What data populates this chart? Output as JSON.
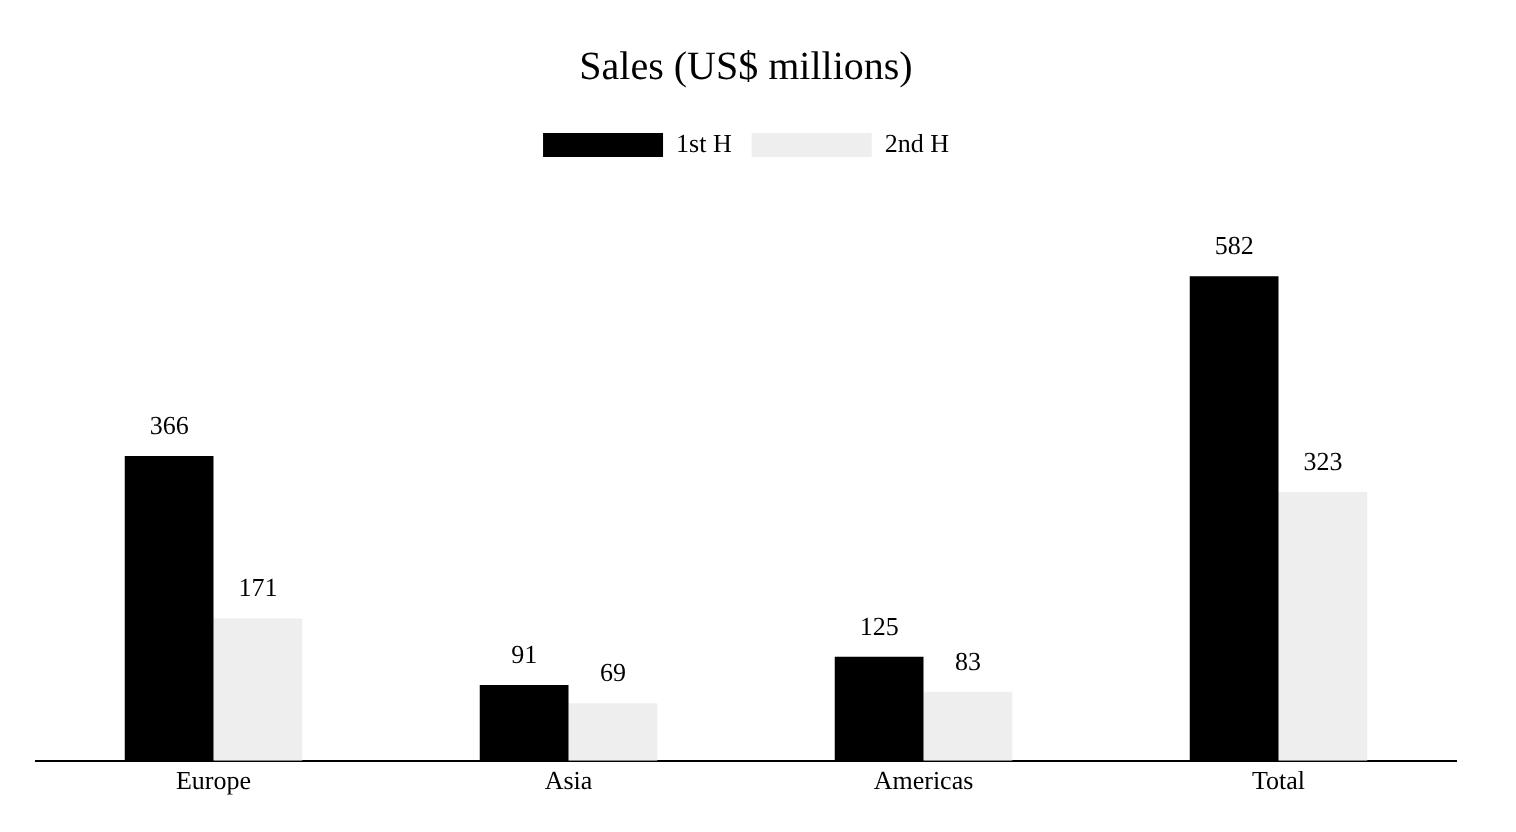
{
  "chart_data": {
    "type": "bar",
    "title": "Sales (US$ millions)",
    "categories": [
      "Europe",
      "Asia",
      "Americas",
      "Total"
    ],
    "series": [
      {
        "name": "1st H",
        "color": "#000000",
        "values": [
          366,
          91,
          125,
          582
        ]
      },
      {
        "name": "2nd H",
        "color": "#eeeeee",
        "values": [
          171,
          69,
          83,
          323
        ]
      }
    ],
    "data_labels": true,
    "legend": "top",
    "grid": false
  }
}
